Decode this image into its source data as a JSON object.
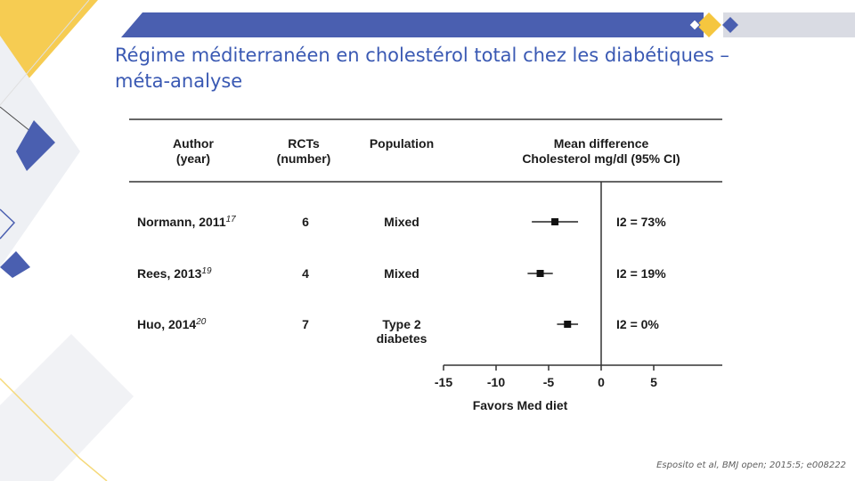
{
  "slide": {
    "title_line1": "Régime méditerranéen en cholestérol total chez les diabétiques –",
    "title_line2": "méta-analyse",
    "citation": "Esposito et al, BMJ open; 2015:5; e008222",
    "colors": {
      "accent_blue": "#4a5fb0",
      "accent_yellow": "#f5c63f",
      "title": "#3a59b3"
    }
  },
  "chart_data": {
    "type": "forest",
    "headers": {
      "author": [
        "Author",
        "(year)"
      ],
      "rcts": [
        "RCTs",
        "(number)"
      ],
      "population": "Population",
      "effect": [
        "Mean difference",
        "Cholesterol mg/dl (95% CI)"
      ]
    },
    "studies": [
      {
        "author": "Normann, 2011",
        "ref": "17",
        "rcts": "6",
        "population": [
          "Mixed"
        ],
        "mean": -4.4,
        "ci": [
          -6.6,
          -2.2
        ],
        "i2": "I2 = 73%"
      },
      {
        "author": "Rees, 2013",
        "ref": "19",
        "rcts": "4",
        "population": [
          "Mixed"
        ],
        "mean": -5.8,
        "ci": [
          -7.0,
          -4.6
        ],
        "i2": "I2 = 19%"
      },
      {
        "author": "Huo, 2014",
        "ref": "20",
        "rcts": "7",
        "population": [
          "Type 2",
          "diabetes"
        ],
        "mean": -3.2,
        "ci": [
          -4.2,
          -2.2
        ],
        "i2": "I2 = 0%"
      }
    ],
    "x_ticks": [
      -15,
      -10,
      -5,
      0,
      5
    ],
    "xlim": [
      -15,
      12
    ],
    "xlabel": "Favors Med diet"
  }
}
